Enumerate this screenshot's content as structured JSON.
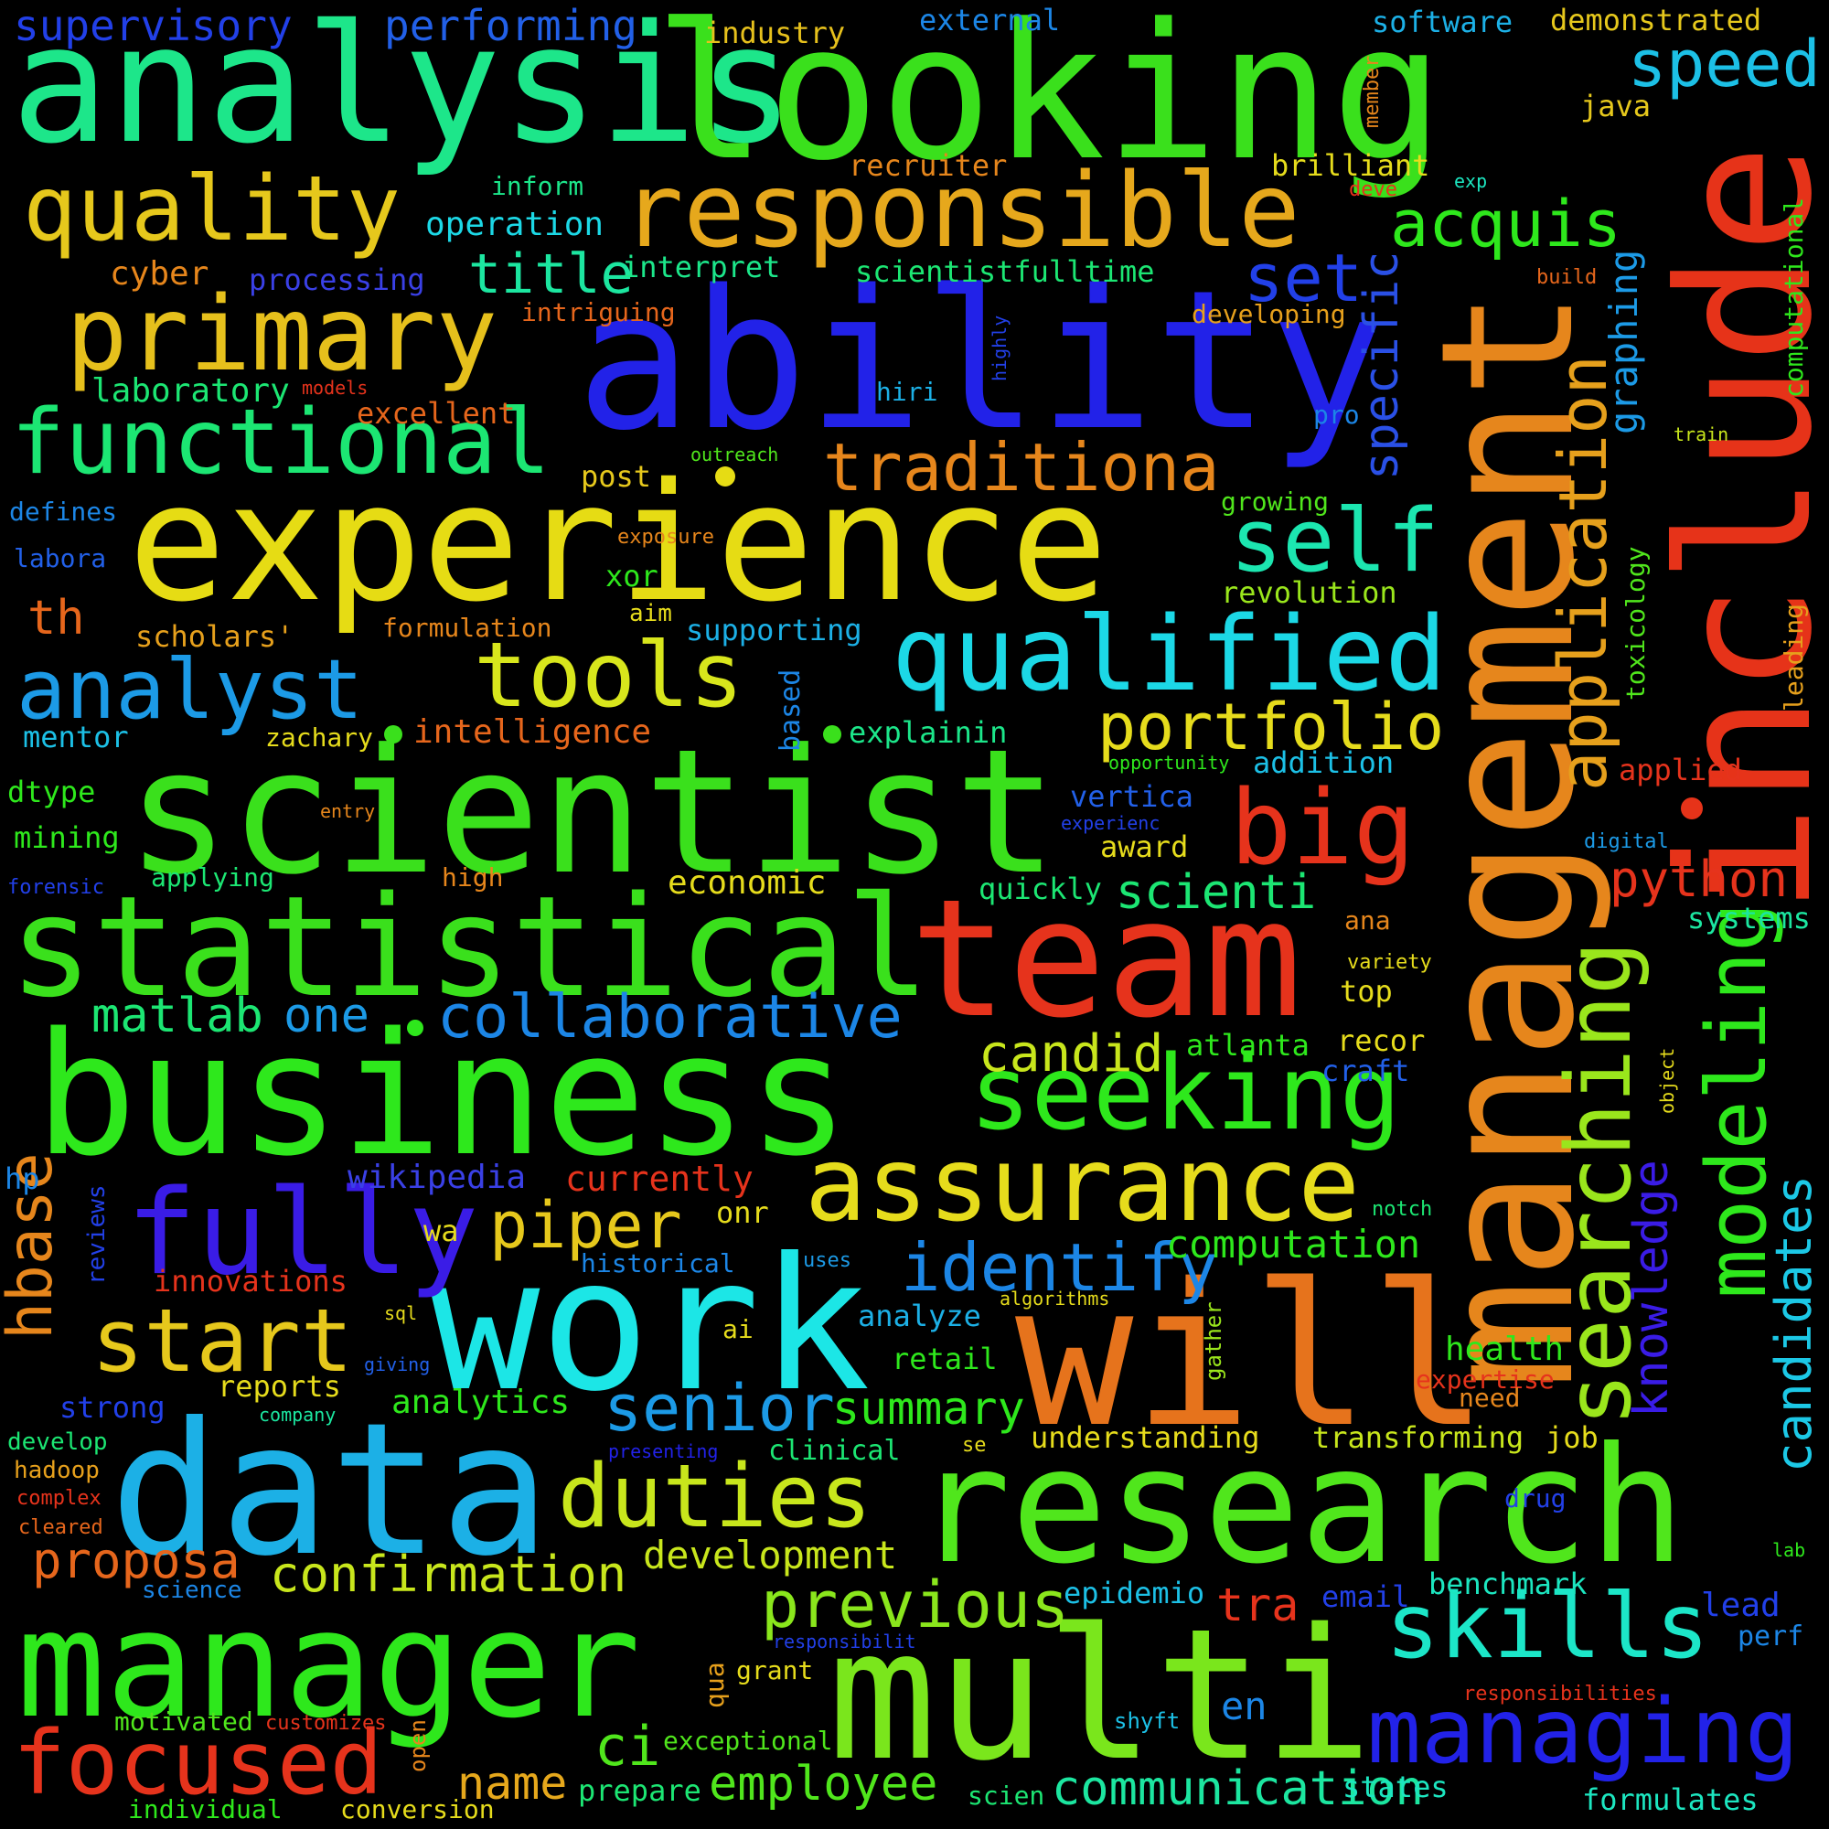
{
  "word_cloud": {
    "background": "#000000",
    "words": [
      {
        "text": "analysis",
        "color": "#1de68a"
      },
      {
        "text": "looking",
        "color": "#3ae01c"
      },
      {
        "text": "ability",
        "color": "#2222e8"
      },
      {
        "text": "experience",
        "color": "#e6dc14"
      },
      {
        "text": "include",
        "color": "#e63319"
      },
      {
        "text": "management",
        "color": "#e6861c"
      },
      {
        "text": "scientist",
        "color": "#3ae01c"
      },
      {
        "text": "statistical",
        "color": "#3ae01c"
      },
      {
        "text": "team",
        "color": "#e6331c"
      },
      {
        "text": "business",
        "color": "#2ee81c"
      },
      {
        "text": "work",
        "color": "#1ce6e6"
      },
      {
        "text": "will",
        "color": "#e6731c"
      },
      {
        "text": "data",
        "color": "#1cb0e6"
      },
      {
        "text": "research",
        "color": "#50e61c"
      },
      {
        "text": "manager",
        "color": "#2ee81c"
      },
      {
        "text": "multi",
        "color": "#7ae61c"
      },
      {
        "text": "responsible",
        "color": "#e6a81c"
      },
      {
        "text": "quality",
        "color": "#e6c81c"
      },
      {
        "text": "primary",
        "color": "#e6c01c"
      },
      {
        "text": "functional",
        "color": "#1ce673"
      },
      {
        "text": "qualified",
        "color": "#1cd8e6"
      },
      {
        "text": "tools",
        "color": "#d8e61c"
      },
      {
        "text": "analyst",
        "color": "#1c9ae6"
      },
      {
        "text": "fully",
        "color": "#3a1ce6"
      },
      {
        "text": "assurance",
        "color": "#e6dc1c"
      },
      {
        "text": "seeking",
        "color": "#2ee81c"
      },
      {
        "text": "searching",
        "color": "#9ae61c"
      },
      {
        "text": "modeling",
        "color": "#2ee81c"
      },
      {
        "text": "application",
        "color": "#e6a01c"
      },
      {
        "text": "managing",
        "color": "#2222e8"
      },
      {
        "text": "skills",
        "color": "#1ce6c8"
      },
      {
        "text": "big",
        "color": "#e6331c"
      },
      {
        "text": "self",
        "color": "#1ce6b0"
      },
      {
        "text": "speed",
        "color": "#1cc0e6"
      },
      {
        "text": "traditiona",
        "color": "#e6861c"
      },
      {
        "text": "start",
        "color": "#e6c81c"
      },
      {
        "text": "duties",
        "color": "#c8e61c"
      },
      {
        "text": "identify",
        "color": "#1c86e6"
      },
      {
        "text": "senior",
        "color": "#1c9ae6"
      },
      {
        "text": "piper",
        "color": "#e6c81c"
      },
      {
        "text": "portfolio",
        "color": "#e6dc1c"
      },
      {
        "text": "collaborative",
        "color": "#1c86e6"
      },
      {
        "text": "focused",
        "color": "#e6331c"
      },
      {
        "text": "previous",
        "color": "#8ae61c"
      },
      {
        "text": "communication",
        "color": "#1ce6a0"
      },
      {
        "text": "employee",
        "color": "#50e61c"
      },
      {
        "text": "confirmation",
        "color": "#c8e61c"
      },
      {
        "text": "proposa",
        "color": "#e6661c"
      },
      {
        "text": "hbase",
        "color": "#e6861c"
      },
      {
        "text": "candidates",
        "color": "#1cc8e6"
      },
      {
        "text": "knowledge",
        "color": "#3a1ce6"
      },
      {
        "text": "acquis",
        "color": "#2ee81c"
      },
      {
        "text": "set",
        "color": "#2240e8"
      },
      {
        "text": "title",
        "color": "#1ce6a0"
      },
      {
        "text": "specific",
        "color": "#2a50e6"
      },
      {
        "text": "graphing",
        "color": "#1c9ae6"
      },
      {
        "text": "python",
        "color": "#e6331c"
      },
      {
        "text": "matlab",
        "color": "#1ce673"
      },
      {
        "text": "one",
        "color": "#1c9ae6"
      },
      {
        "text": "candid",
        "color": "#c8e61c"
      },
      {
        "text": "scienti",
        "color": "#1ce673"
      },
      {
        "text": "summary",
        "color": "#2ee81c"
      },
      {
        "text": "computation",
        "color": "#2ee81c"
      },
      {
        "text": "development",
        "color": "#c8e61c"
      },
      {
        "text": "ci",
        "color": "#50e61c"
      },
      {
        "text": "name",
        "color": "#e6a81c"
      },
      {
        "text": "wikipedia",
        "color": "#3a40e6"
      },
      {
        "text": "currently",
        "color": "#e6331c"
      },
      {
        "text": "tra",
        "color": "#e6331c"
      },
      {
        "text": "en",
        "color": "#1c86e6"
      },
      {
        "text": "th",
        "color": "#e6661c"
      },
      {
        "text": "supervisory",
        "color": "#2240e8"
      },
      {
        "text": "performing",
        "color": "#2260e8"
      },
      {
        "text": "industry",
        "color": "#e6c01c"
      },
      {
        "text": "external",
        "color": "#1c86e6"
      },
      {
        "text": "software",
        "color": "#1cb0e6"
      },
      {
        "text": "demonstrated",
        "color": "#e6c81c"
      },
      {
        "text": "member",
        "color": "#e6861c"
      },
      {
        "text": "java",
        "color": "#e6c81c"
      },
      {
        "text": "recruiter",
        "color": "#e6861c"
      },
      {
        "text": "brilliant",
        "color": "#e6dc1c"
      },
      {
        "text": "deve",
        "color": "#e6331c"
      },
      {
        "text": "exp",
        "color": "#1ce6c0"
      },
      {
        "text": "inform",
        "color": "#1ce68a"
      },
      {
        "text": "operation",
        "color": "#1cd8e6"
      },
      {
        "text": "computational",
        "color": "#2ee81c"
      },
      {
        "text": "build",
        "color": "#e6661c"
      },
      {
        "text": "cyber",
        "color": "#e6861c"
      },
      {
        "text": "processing",
        "color": "#3a40e6"
      },
      {
        "text": "interpret",
        "color": "#1ce68a"
      },
      {
        "text": "scientistfulltime",
        "color": "#1ce673"
      },
      {
        "text": "intriguing",
        "color": "#e6661c"
      },
      {
        "text": "developing",
        "color": "#e6a01c"
      },
      {
        "text": "laboratory",
        "color": "#1ce673"
      },
      {
        "text": "models",
        "color": "#e6331c"
      },
      {
        "text": "highly",
        "color": "#2240e8"
      },
      {
        "text": "hiri",
        "color": "#1cb0e6"
      },
      {
        "text": "excellent",
        "color": "#e6661c"
      },
      {
        "text": "pro",
        "color": "#1c86e6"
      },
      {
        "text": "train",
        "color": "#c8e61c"
      },
      {
        "text": "outreach",
        "color": "#50e61c"
      },
      {
        "text": "post",
        "color": "#e6c81c"
      },
      {
        "text": "defines",
        "color": "#1c86e6"
      },
      {
        "text": "growing",
        "color": "#50e61c"
      },
      {
        "text": "exposure",
        "color": "#e6861c"
      },
      {
        "text": "labora",
        "color": "#2260e8"
      },
      {
        "text": "xor",
        "color": "#2ee81c"
      },
      {
        "text": "revolution",
        "color": "#9ae61c"
      },
      {
        "text": "toxicology",
        "color": "#50e61c"
      },
      {
        "text": "aim",
        "color": "#e6dc1c"
      },
      {
        "text": "scholars'",
        "color": "#e6a01c"
      },
      {
        "text": "formulation",
        "color": "#e6861c"
      },
      {
        "text": "supporting",
        "color": "#1cb0e6"
      },
      {
        "text": "leading",
        "color": "#e6a01c"
      },
      {
        "text": "based",
        "color": "#1c86e6"
      },
      {
        "text": "mentor",
        "color": "#1cc0e6"
      },
      {
        "text": "zachary",
        "color": "#e6dc1c"
      },
      {
        "text": "intelligence",
        "color": "#e6661c"
      },
      {
        "text": "explainin",
        "color": "#1ce68a"
      },
      {
        "text": "opportunity",
        "color": "#2ee81c"
      },
      {
        "text": "addition",
        "color": "#1cc0e6"
      },
      {
        "text": "applied",
        "color": "#e6331c"
      },
      {
        "text": "dtype",
        "color": "#2ee81c"
      },
      {
        "text": "entry",
        "color": "#e6861c"
      },
      {
        "text": "vertica",
        "color": "#2260e8"
      },
      {
        "text": "experienc",
        "color": "#2240e8"
      },
      {
        "text": "digital",
        "color": "#1c9ae6"
      },
      {
        "text": "mining",
        "color": "#2ee81c"
      },
      {
        "text": "award",
        "color": "#e6dc1c"
      },
      {
        "text": "forensic",
        "color": "#2240e8"
      },
      {
        "text": "applying",
        "color": "#1ce673"
      },
      {
        "text": "high",
        "color": "#e6861c"
      },
      {
        "text": "economic",
        "color": "#e6dc1c"
      },
      {
        "text": "quickly",
        "color": "#1ce673"
      },
      {
        "text": "ana",
        "color": "#e6861c"
      },
      {
        "text": "systems",
        "color": "#1ce6a0"
      },
      {
        "text": "variety",
        "color": "#e6dc1c"
      },
      {
        "text": "top",
        "color": "#e6dc1c"
      },
      {
        "text": "atlanta",
        "color": "#2ee81c"
      },
      {
        "text": "recor",
        "color": "#e6dc1c"
      },
      {
        "text": "craft",
        "color": "#2260e8"
      },
      {
        "text": "object",
        "color": "#e6dc1c"
      },
      {
        "text": "hp",
        "color": "#1c86e6"
      },
      {
        "text": "reviews",
        "color": "#2240e8"
      },
      {
        "text": "onr",
        "color": "#e6dc1c"
      },
      {
        "text": "notch",
        "color": "#1ce673"
      },
      {
        "text": "wa",
        "color": "#e6dc1c"
      },
      {
        "text": "historical",
        "color": "#1c86e6"
      },
      {
        "text": "uses",
        "color": "#1c9ae6"
      },
      {
        "text": "algorithms",
        "color": "#e6dc1c"
      },
      {
        "text": "gather",
        "color": "#9ae61c"
      },
      {
        "text": "innovations",
        "color": "#e6331c"
      },
      {
        "text": "sql",
        "color": "#e6dc1c"
      },
      {
        "text": "ai",
        "color": "#e6dc1c"
      },
      {
        "text": "analyze",
        "color": "#1cb0e6"
      },
      {
        "text": "health",
        "color": "#2ee81c"
      },
      {
        "text": "giving",
        "color": "#2260e8"
      },
      {
        "text": "retail",
        "color": "#2ee81c"
      },
      {
        "text": "expertise",
        "color": "#e6331c"
      },
      {
        "text": "reports",
        "color": "#e6dc1c"
      },
      {
        "text": "analytics",
        "color": "#2ee81c"
      },
      {
        "text": "need",
        "color": "#e6861c"
      },
      {
        "text": "strong",
        "color": "#2240e8"
      },
      {
        "text": "company",
        "color": "#1ce6a0"
      },
      {
        "text": "develop",
        "color": "#1ce673"
      },
      {
        "text": "understanding",
        "color": "#e6dc1c"
      },
      {
        "text": "transforming",
        "color": "#c8e61c"
      },
      {
        "text": "job",
        "color": "#e6dc1c"
      },
      {
        "text": "presenting",
        "color": "#2222e8"
      },
      {
        "text": "se",
        "color": "#e6dc1c"
      },
      {
        "text": "clinical",
        "color": "#1ce673"
      },
      {
        "text": "hadoop",
        "color": "#e6a01c"
      },
      {
        "text": "complex",
        "color": "#e6331c"
      },
      {
        "text": "drug",
        "color": "#2240e8"
      },
      {
        "text": "cleared",
        "color": "#e6661c"
      },
      {
        "text": "lab",
        "color": "#2ee81c"
      },
      {
        "text": "science",
        "color": "#1c86e6"
      },
      {
        "text": "epidemio",
        "color": "#1cc0e6"
      },
      {
        "text": "email",
        "color": "#2240e8"
      },
      {
        "text": "benchmark",
        "color": "#1ce6c0"
      },
      {
        "text": "lead",
        "color": "#2240e8"
      },
      {
        "text": "responsibilit",
        "color": "#2240e8"
      },
      {
        "text": "perf",
        "color": "#1c86e6"
      },
      {
        "text": "qua",
        "color": "#e6a01c"
      },
      {
        "text": "grant",
        "color": "#e6dc1c"
      },
      {
        "text": "responsibilities",
        "color": "#e6331c"
      },
      {
        "text": "motivated",
        "color": "#50e61c"
      },
      {
        "text": "customizes",
        "color": "#e6331c"
      },
      {
        "text": "open",
        "color": "#e6861c"
      },
      {
        "text": "shyft",
        "color": "#1cc0e6"
      },
      {
        "text": "exceptional",
        "color": "#50e61c"
      },
      {
        "text": "states",
        "color": "#1ce6c0"
      },
      {
        "text": "prepare",
        "color": "#1ce673"
      },
      {
        "text": "scien",
        "color": "#1ce673"
      },
      {
        "text": "formulates",
        "color": "#1ce6c0"
      },
      {
        "text": "individual",
        "color": "#2ee81c"
      },
      {
        "text": "conversion",
        "color": "#e6dc1c"
      }
    ]
  }
}
